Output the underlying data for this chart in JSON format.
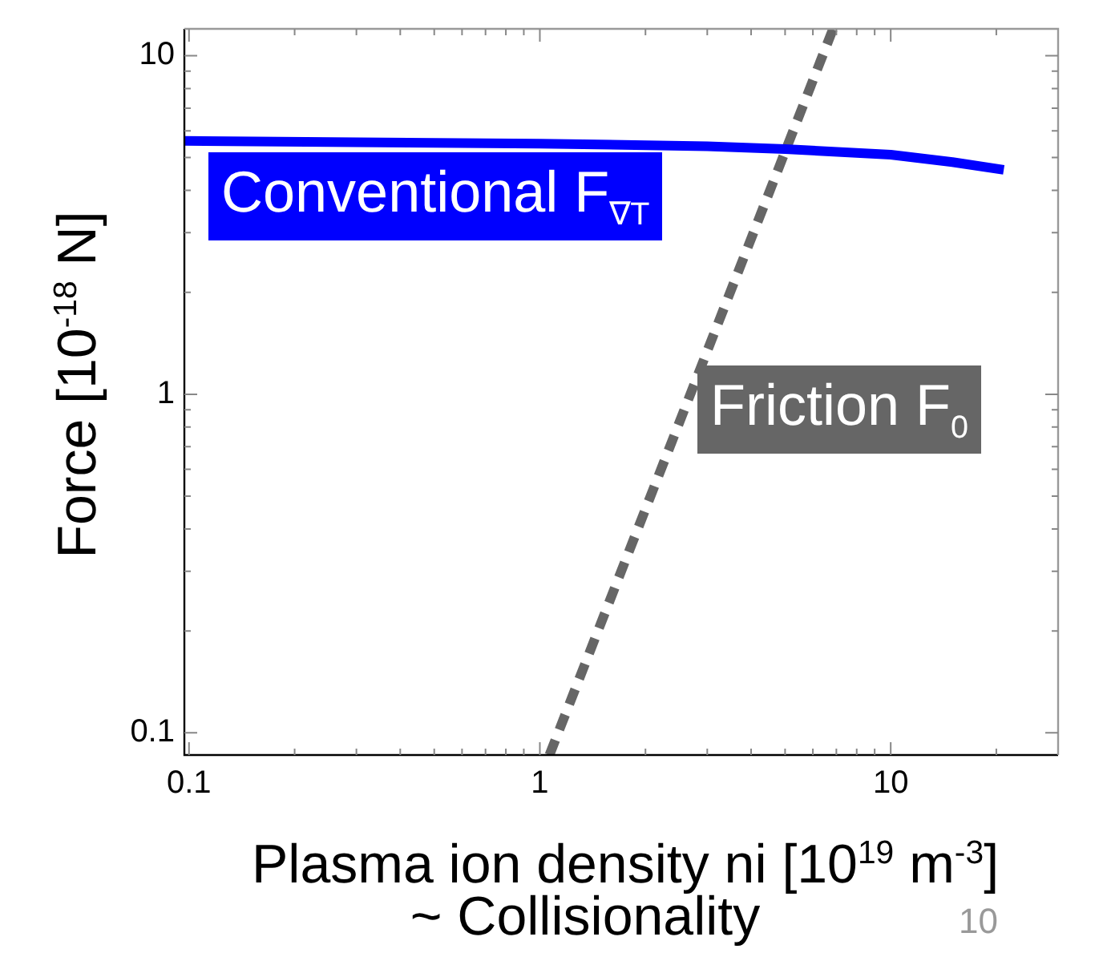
{
  "chart_data": {
    "type": "line",
    "ylabel": "Force [10$^{-18}$ N]",
    "xlabel": "Plasma ion density ni [10$^{19}$ m$^{-3}$]\n~ Collisionality",
    "log": "xy",
    "grid": false,
    "legend": false,
    "marker": "none",
    "xlim": [
      0.097,
      30
    ],
    "ylim": [
      0.086,
      12
    ],
    "xticks": [
      0.1,
      {
        "value": 0.2,
        "label": null
      },
      {
        "value": 0.3,
        "label": null
      },
      {
        "value": 0.4,
        "label": null
      },
      {
        "value": 0.5,
        "label": null
      },
      {
        "value": 0.6,
        "label": null
      },
      {
        "value": 0.7,
        "label": null
      },
      {
        "value": 0.8,
        "label": null
      },
      {
        "value": 0.9,
        "label": null
      },
      1,
      {
        "value": 2,
        "label": null
      },
      {
        "value": 3,
        "label": null
      },
      {
        "value": 4,
        "label": null
      },
      {
        "value": 5,
        "label": null
      },
      {
        "value": 6,
        "label": null
      },
      {
        "value": 7,
        "label": null
      },
      {
        "value": 8,
        "label": null
      },
      {
        "value": 9,
        "label": null
      },
      10,
      {
        "value": 20,
        "label": null
      }
    ],
    "yticks": [
      0.1,
      {
        "value": 0.2,
        "label": null
      },
      {
        "value": 0.3,
        "label": null
      },
      {
        "value": 0.4,
        "label": null
      },
      {
        "value": 0.5,
        "label": null
      },
      {
        "value": 0.6,
        "label": null
      },
      {
        "value": 0.7,
        "label": null
      },
      {
        "value": 0.8,
        "label": null
      },
      {
        "value": 0.9,
        "label": null
      },
      1,
      {
        "value": 2,
        "label": null
      },
      {
        "value": 3,
        "label": null
      },
      {
        "value": 4,
        "label": null
      },
      {
        "value": 5,
        "label": null
      },
      {
        "value": 6,
        "label": null
      },
      {
        "value": 7,
        "label": null
      },
      {
        "value": 8,
        "label": null
      },
      {
        "value": 9,
        "label": null
      },
      10
    ],
    "series": [
      {
        "name": "Conventional F$_{∇T}$",
        "color": "#0000ff",
        "line_style": "solid",
        "x": [
          0.097,
          0.3,
          1,
          3,
          5,
          10,
          15,
          21
        ],
        "values": [
          5.6,
          5.55,
          5.5,
          5.4,
          5.3,
          5.1,
          4.85,
          4.6
        ]
      },
      {
        "name": "Friction F$_{0}$",
        "color": "#666666",
        "line_style": "dashed",
        "x": [
          1.065,
          6.85
        ],
        "values": [
          0.086,
          12
        ]
      }
    ],
    "annotations": [
      "10"
    ]
  }
}
